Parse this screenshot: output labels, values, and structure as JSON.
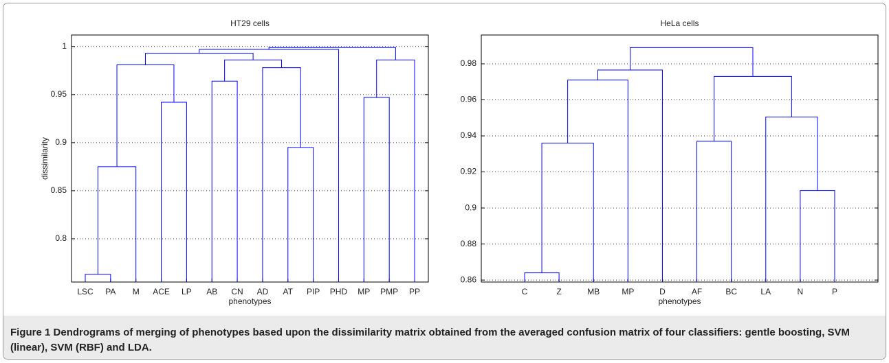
{
  "chart_data": [
    {
      "type": "dendrogram",
      "title": "HT29 cells",
      "xlabel": "phenotypes",
      "ylabel": "dissimilarity",
      "color": "#0000ff",
      "grid": true,
      "ylim": [
        0.755,
        1.012
      ],
      "yticks": [
        0.8,
        0.85,
        0.9,
        0.95,
        1
      ],
      "tree": {
        "height": 0.999,
        "children": [
          {
            "height": 0.997,
            "children": [
              {
                "height": 0.993,
                "children": [
                  {
                    "height": 0.981,
                    "children": [
                      {
                        "height": 0.875,
                        "children": [
                          {
                            "height": 0.763,
                            "children": [
                              "LSC",
                              "PA"
                            ]
                          },
                          "M"
                        ]
                      },
                      {
                        "height": 0.942,
                        "children": [
                          "ACE",
                          "LP"
                        ]
                      }
                    ]
                  },
                  {
                    "height": 0.986,
                    "children": [
                      {
                        "height": 0.964,
                        "children": [
                          "AB",
                          "CN"
                        ]
                      },
                      {
                        "height": 0.978,
                        "children": [
                          "AD",
                          {
                            "height": 0.895,
                            "children": [
                              "AT",
                              "PIP"
                            ]
                          }
                        ]
                      }
                    ]
                  }
                ]
              },
              "PHD"
            ]
          },
          {
            "height": 0.986,
            "children": [
              {
                "height": 0.947,
                "children": [
                  "MP",
                  "PMP"
                ]
              },
              "PP"
            ]
          }
        ]
      }
    },
    {
      "type": "dendrogram",
      "title": "HeLa cells",
      "xlabel": "phenotypes",
      "color": "#0000ff",
      "grid": true,
      "ylim": [
        0.8589,
        0.996
      ],
      "yticks": [
        0.86,
        0.88,
        0.9,
        0.92,
        0.94,
        0.96,
        0.98
      ],
      "tree": {
        "height": 0.989,
        "children": [
          {
            "height": 0.9766,
            "children": [
              {
                "height": 0.971,
                "children": [
                  {
                    "height": 0.936,
                    "children": [
                      {
                        "height": 0.864,
                        "children": [
                          "C",
                          "Z"
                        ]
                      },
                      "MB"
                    ]
                  },
                  "MP"
                ]
              },
              "D"
            ]
          },
          {
            "height": 0.973,
            "children": [
              {
                "height": 0.937,
                "children": [
                  "AF",
                  "BC"
                ]
              },
              {
                "height": 0.9505,
                "children": [
                  "LA",
                  {
                    "height": 0.9097,
                    "children": [
                      "N",
                      "P"
                    ]
                  }
                ]
              }
            ]
          }
        ]
      }
    }
  ],
  "caption": {
    "label": "Figure 1",
    "text": "Dendrograms of merging of phenotypes based upon the dissimilarity matrix obtained from the averaged confusion matrix of four classifiers: gentle boosting, SVM (linear), SVM (RBF) and LDA."
  }
}
